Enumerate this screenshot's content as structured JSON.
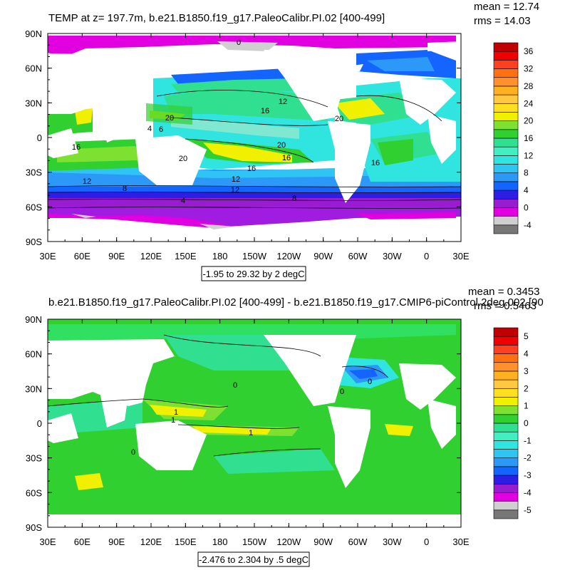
{
  "chart_data": [
    {
      "type": "heatmap",
      "title": "TEMP at z= 197.7m, b.e21.B1850.f19_g17.PaleoCalibr.PI.02 [400-499]",
      "stats": {
        "mean": "mean = 12.74",
        "rms": "rms = 14.03"
      },
      "x_tick_labels": [
        "30E",
        "60E",
        "90E",
        "120E",
        "150E",
        "180",
        "150W",
        "120W",
        "90W",
        "60W",
        "30W",
        "0",
        "30E"
      ],
      "y_tick_labels": [
        "90N",
        "60N",
        "30N",
        "0",
        "30S",
        "60S",
        "90S"
      ],
      "x_range": [
        30,
        390
      ],
      "y_range": [
        -90,
        90
      ],
      "colorbar": {
        "levels": [
          "-4",
          "0",
          "4",
          "8",
          "12",
          "16",
          "20",
          "24",
          "28",
          "32",
          "36"
        ],
        "level_values": [
          -4,
          0,
          4,
          8,
          12,
          16,
          20,
          24,
          28,
          32,
          36
        ],
        "colors": [
          "#777777",
          "#cfcfcf",
          "#e000e0",
          "#9a1cd0",
          "#2d1ee6",
          "#1464ff",
          "#2c98f8",
          "#30c4f4",
          "#30e4e0",
          "#40f0c0",
          "#30e090",
          "#30d030",
          "#7ee030",
          "#f0f000",
          "#ffe020",
          "#ffc840",
          "#ffb020",
          "#ff9030",
          "#ff7010",
          "#ff4020",
          "#f00000",
          "#c00000"
        ]
      },
      "contour_labels": [
        "0",
        "12",
        "16",
        "20",
        "12",
        "16",
        "8",
        "12",
        "12",
        "8",
        "4",
        "4",
        "16",
        "20",
        "6",
        "20",
        "16",
        "20",
        "16"
      ],
      "info_box": "-1.95 to 29.32 by 2 degC"
    },
    {
      "type": "heatmap",
      "title": "b.e21.B1850.f19_g17.PaleoCalibr.PI.02 [400-499] - b.e21.B1850.f19_g17.CMIP6-piControl.2deg.002 [90",
      "stats": {
        "mean": "mean = 0.3453",
        "rms": "rms = 0.5463"
      },
      "x_tick_labels": [
        "30E",
        "60E",
        "90E",
        "120E",
        "150E",
        "180",
        "150W",
        "120W",
        "90W",
        "60W",
        "30W",
        "0",
        "30E"
      ],
      "y_tick_labels": [
        "90N",
        "60N",
        "30N",
        "0",
        "30S",
        "60S",
        "90S"
      ],
      "x_range": [
        30,
        390
      ],
      "y_range": [
        -90,
        90
      ],
      "colorbar": {
        "levels": [
          "-5",
          "-4",
          "-3",
          "-2",
          "-1",
          "0",
          "1",
          "2",
          "3",
          "4",
          "5"
        ],
        "level_values": [
          -5,
          -4,
          -3,
          -2,
          -1,
          0,
          1,
          2,
          3,
          4,
          5
        ],
        "colors": [
          "#777777",
          "#cfcfcf",
          "#e000e0",
          "#9a1cd0",
          "#2d1ee6",
          "#1464ff",
          "#2c98f8",
          "#30c4f4",
          "#30e4e0",
          "#40f0c0",
          "#30e090",
          "#30d030",
          "#7ee030",
          "#f0f000",
          "#ffe020",
          "#ffc840",
          "#ffb020",
          "#ff9030",
          "#ff7010",
          "#ff4020",
          "#f00000",
          "#c00000"
        ]
      },
      "contour_labels": [
        "0",
        "1",
        "1",
        "1",
        "0",
        "0",
        "0"
      ],
      "info_box": "-2.476 to 2.304 by .5 degC"
    }
  ]
}
